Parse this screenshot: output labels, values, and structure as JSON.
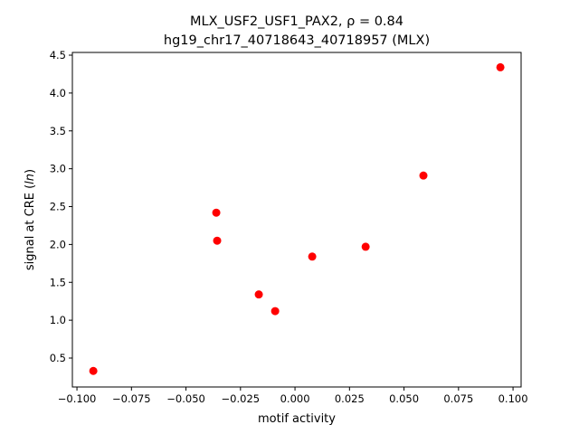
{
  "chart_data": {
    "type": "scatter",
    "title_line1": "MLX_USF2_USF1_PAX2, ρ = 0.84",
    "title_line2": "hg19_chr17_40718643_40718957 (MLX)",
    "xlabel": "motif activity",
    "ylabel": "signal at CRE (ln)",
    "xlim": [
      -0.1021,
      0.1037
    ],
    "ylim": [
      0.118,
      4.536
    ],
    "xticks": [
      -0.1,
      -0.075,
      -0.05,
      -0.025,
      0.0,
      0.025,
      0.05,
      0.075,
      0.1
    ],
    "xtick_labels": [
      "−0.100",
      "−0.075",
      "−0.050",
      "−0.025",
      "0.000",
      "0.025",
      "0.050",
      "0.075",
      "0.100"
    ],
    "yticks": [
      0.5,
      1.0,
      1.5,
      2.0,
      2.5,
      3.0,
      3.5,
      4.0,
      4.5
    ],
    "ytick_labels": [
      "0.5",
      "1.0",
      "1.5",
      "2.0",
      "2.5",
      "3.0",
      "3.5",
      "4.0",
      "4.5"
    ],
    "grid": false,
    "marker_color": "#ff0000",
    "points": [
      {
        "x": -0.0925,
        "y": 0.33
      },
      {
        "x": -0.0361,
        "y": 2.42
      },
      {
        "x": -0.0357,
        "y": 2.05
      },
      {
        "x": -0.0166,
        "y": 1.34
      },
      {
        "x": -0.0091,
        "y": 1.12
      },
      {
        "x": 0.0079,
        "y": 1.84
      },
      {
        "x": 0.0324,
        "y": 1.97
      },
      {
        "x": 0.0589,
        "y": 2.91
      },
      {
        "x": 0.0942,
        "y": 4.34
      }
    ]
  }
}
